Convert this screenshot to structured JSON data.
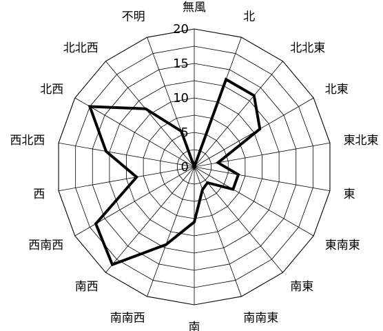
{
  "chart_data": {
    "type": "radar",
    "title": "",
    "categories": [
      "無風",
      "北",
      "北北東",
      "北東",
      "東北東",
      "東",
      "東南東",
      "南東",
      "南南東",
      "南",
      "南南西",
      "南西",
      "西南西",
      "西",
      "西北西",
      "北西",
      "北北西",
      "不明"
    ],
    "series": [
      {
        "values": [
          0,
          13.5,
          13.5,
          11,
          3.5,
          6.5,
          6.5,
          3,
          3.5,
          8,
          12,
          18.5,
          16.5,
          8.5,
          13,
          17.5,
          11,
          5.5
        ]
      }
    ],
    "r_range": [
      0,
      20
    ],
    "r_ticks": [
      "0",
      "5",
      "10",
      "15",
      "20"
    ],
    "grid": true,
    "grid_shape": "polygon",
    "line_color": "#000000",
    "grid_color": "#000000"
  }
}
